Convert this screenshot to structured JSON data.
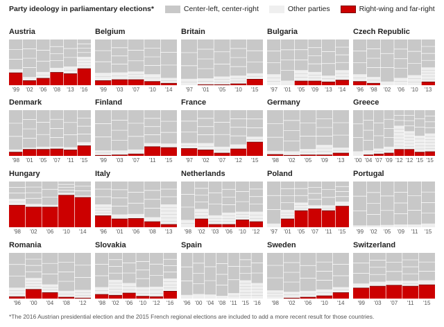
{
  "legend": {
    "title": "Party ideology in parliamentary elections*",
    "items": [
      {
        "label": "Center-left, center-right",
        "color": "#c8c8c8"
      },
      {
        "label": "Other parties",
        "color": "#efefef"
      },
      {
        "label": "Right-wing and far-right",
        "color": "#cc0000"
      }
    ]
  },
  "footnote": "*The 2016 Austrian presidential election and the 2015 French regional elections are included to add a more recent result for those countries.",
  "colors": {
    "center": "#c8c8c8",
    "other": "#efefef",
    "right": "#cc0000",
    "divider": "#ffffff"
  },
  "chart_data": {
    "type": "stacked-bar-small-multiples",
    "unit": "share of vote (%)",
    "series_order": [
      "Right-wing and far-right",
      "Other parties",
      "Center-left, center-right"
    ],
    "panels": [
      {
        "country": "Austria",
        "years": [
          "'99",
          "'02",
          "'06",
          "'08",
          "'13",
          "'16"
        ],
        "right": [
          27,
          10,
          15,
          28,
          25,
          36
        ],
        "other": [
          8,
          8,
          14,
          10,
          16,
          26
        ]
      },
      {
        "country": "Belgium",
        "years": [
          "'99",
          "'03",
          "'07",
          "'10",
          "'14"
        ],
        "right": [
          10,
          12,
          12,
          8,
          4
        ],
        "other": [
          17,
          16,
          18,
          16,
          12
        ]
      },
      {
        "country": "Britain",
        "years": [
          "'97",
          "'01",
          "'05",
          "'10",
          "'15"
        ],
        "right": [
          0,
          1,
          1,
          3,
          13
        ],
        "other": [
          14,
          14,
          18,
          18,
          13
        ]
      },
      {
        "country": "Bulgaria",
        "years": [
          "'97",
          "'01",
          "'05",
          "'09",
          "'13",
          "'14"
        ],
        "right": [
          0,
          0,
          9,
          9,
          7,
          11
        ],
        "other": [
          24,
          10,
          24,
          20,
          14,
          22
        ]
      },
      {
        "country": "Czech Republic",
        "years": [
          "'96",
          "'98",
          "'02",
          "'06",
          "'10",
          "'13"
        ],
        "right": [
          8,
          4,
          0,
          0,
          0,
          7
        ],
        "other": [
          16,
          14,
          8,
          16,
          22,
          32
        ]
      },
      {
        "country": "Denmark",
        "years": [
          "'98",
          "'01",
          "'05",
          "'07",
          "'11",
          "'15"
        ],
        "right": [
          8,
          14,
          14,
          15,
          13,
          22
        ],
        "other": [
          6,
          4,
          6,
          5,
          6,
          8
        ]
      },
      {
        "country": "Finland",
        "years": [
          "'99",
          "'03",
          "'07",
          "'11",
          "'15"
        ],
        "right": [
          1,
          2,
          4,
          20,
          18
        ],
        "other": [
          11,
          10,
          10,
          8,
          9
        ]
      },
      {
        "country": "France",
        "years": [
          "'97",
          "'02",
          "'07",
          "'12",
          "'15"
        ],
        "right": [
          16,
          13,
          6,
          15,
          30
        ],
        "other": [
          12,
          15,
          14,
          10,
          12
        ]
      },
      {
        "country": "Germany",
        "years": [
          "'98",
          "'02",
          "'05",
          "'09",
          "'13"
        ],
        "right": [
          3,
          1,
          2,
          2,
          6
        ],
        "other": [
          8,
          9,
          13,
          22,
          12
        ]
      },
      {
        "country": "Greece",
        "years": [
          "'00",
          "'04",
          "'07",
          "'09",
          "'12",
          "'12",
          "'15",
          "'15"
        ],
        "right": [
          0,
          2,
          4,
          6,
          14,
          14,
          8,
          9
        ],
        "other": [
          10,
          10,
          12,
          14,
          52,
          40,
          36,
          40
        ]
      },
      {
        "country": "Hungary",
        "years": [
          "'98",
          "'02",
          "'06",
          "'10",
          "'14"
        ],
        "right": [
          48,
          44,
          44,
          70,
          65
        ],
        "other": [
          14,
          7,
          5,
          5,
          4
        ]
      },
      {
        "country": "Italy",
        "years": [
          "'96",
          "'01",
          "'06",
          "'08",
          "'13"
        ],
        "right": [
          25,
          18,
          19,
          12,
          6
        ],
        "other": [
          25,
          10,
          10,
          10,
          44
        ]
      },
      {
        "country": "Netherlands",
        "years": [
          "'98",
          "'02",
          "'03",
          "'06",
          "'10",
          "'12"
        ],
        "right": [
          0,
          18,
          6,
          6,
          16,
          12
        ],
        "other": [
          16,
          22,
          20,
          26,
          18,
          22
        ]
      },
      {
        "country": "Poland",
        "years": [
          "'97",
          "'01",
          "'05",
          "'07",
          "'11",
          "'15"
        ],
        "right": [
          0,
          18,
          36,
          40,
          36,
          46
        ],
        "other": [
          8,
          20,
          18,
          8,
          12,
          10
        ]
      },
      {
        "country": "Portugal",
        "years": [
          "'99",
          "'02",
          "'05",
          "'09",
          "'11",
          "'15"
        ],
        "right": [
          0,
          0,
          0,
          0,
          0,
          0
        ],
        "other": [
          4,
          4,
          5,
          6,
          6,
          8
        ]
      },
      {
        "country": "Romania",
        "years": [
          "'96",
          "'00",
          "'04",
          "'08",
          "'12"
        ],
        "right": [
          4,
          20,
          13,
          3,
          1
        ],
        "other": [
          20,
          25,
          18,
          14,
          18
        ]
      },
      {
        "country": "Slovakia",
        "years": [
          "'98",
          "'02",
          "'06",
          "'10",
          "'12",
          "'16"
        ],
        "right": [
          9,
          7,
          12,
          5,
          4,
          16
        ],
        "other": [
          16,
          34,
          22,
          20,
          22,
          28
        ]
      },
      {
        "country": "Spain",
        "years": [
          "'96",
          "'00",
          "'04",
          "'08",
          "'11",
          "'15",
          "'16"
        ],
        "right": [
          0,
          0,
          0,
          0,
          0,
          0,
          0
        ],
        "other": [
          8,
          10,
          9,
          6,
          12,
          40,
          34
        ]
      },
      {
        "country": "Sweden",
        "years": [
          "'98",
          "'02",
          "'06",
          "'10",
          "'14"
        ],
        "right": [
          0,
          1,
          3,
          6,
          13
        ],
        "other": [
          18,
          14,
          14,
          14,
          12
        ]
      },
      {
        "country": "Switzerland",
        "years": [
          "'99",
          "'03",
          "'07",
          "'11",
          "'15"
        ],
        "right": [
          23,
          27,
          29,
          27,
          30
        ],
        "other": [
          10,
          10,
          10,
          12,
          10
        ]
      }
    ]
  }
}
